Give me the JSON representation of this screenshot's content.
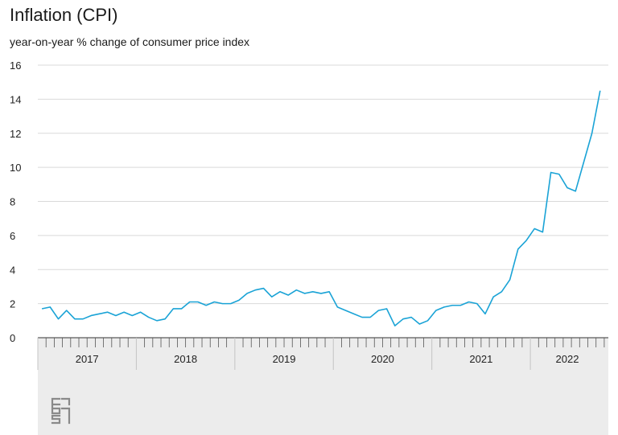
{
  "chart_data": {
    "type": "line",
    "title": "Inflation (CPI)",
    "subtitle": "year-on-year % change of consumer price index",
    "ylim": [
      0,
      16
    ],
    "yticks": [
      0,
      2,
      4,
      6,
      8,
      10,
      12,
      14,
      16
    ],
    "grid": true,
    "x_start": "2017-01",
    "x_end": "2022-09",
    "year_labels": [
      "2017",
      "2018",
      "2019",
      "2020",
      "2021",
      "2022"
    ],
    "series": [
      {
        "color": "#1aa3d6",
        "x": [
          "2017-01",
          "2017-02",
          "2017-03",
          "2017-04",
          "2017-05",
          "2017-06",
          "2017-07",
          "2017-08",
          "2017-09",
          "2017-10",
          "2017-11",
          "2017-12",
          "2018-01",
          "2018-02",
          "2018-03",
          "2018-04",
          "2018-05",
          "2018-06",
          "2018-07",
          "2018-08",
          "2018-09",
          "2018-10",
          "2018-11",
          "2018-12",
          "2019-01",
          "2019-02",
          "2019-03",
          "2019-04",
          "2019-05",
          "2019-06",
          "2019-07",
          "2019-08",
          "2019-09",
          "2019-10",
          "2019-11",
          "2019-12",
          "2020-01",
          "2020-02",
          "2020-03",
          "2020-04",
          "2020-05",
          "2020-06",
          "2020-07",
          "2020-08",
          "2020-09",
          "2020-10",
          "2020-11",
          "2020-12",
          "2021-01",
          "2021-02",
          "2021-03",
          "2021-04",
          "2021-05",
          "2021-06",
          "2021-07",
          "2021-08",
          "2021-09",
          "2021-10",
          "2021-11",
          "2021-12",
          "2022-01",
          "2022-02",
          "2022-03",
          "2022-04",
          "2022-05",
          "2022-06",
          "2022-07",
          "2022-08",
          "2022-09"
        ],
        "values": [
          1.7,
          1.8,
          1.1,
          1.6,
          1.1,
          1.1,
          1.3,
          1.4,
          1.5,
          1.3,
          1.5,
          1.3,
          1.5,
          1.2,
          1.0,
          1.1,
          1.7,
          1.7,
          2.1,
          2.1,
          1.9,
          2.1,
          2.0,
          2.0,
          2.2,
          2.6,
          2.8,
          2.9,
          2.4,
          2.7,
          2.5,
          2.8,
          2.6,
          2.7,
          2.6,
          2.7,
          1.8,
          1.6,
          1.4,
          1.2,
          1.2,
          1.6,
          1.7,
          0.7,
          1.1,
          1.2,
          0.8,
          1.0,
          1.6,
          1.8,
          1.9,
          1.9,
          2.1,
          2.0,
          1.4,
          2.4,
          2.7,
          3.4,
          5.2,
          5.7,
          6.4,
          6.2,
          9.7,
          9.6,
          8.8,
          8.6,
          10.3,
          12.0,
          14.5
        ]
      }
    ]
  },
  "colors": {
    "line": "#1aa3d6",
    "grid": "#d9d9d9",
    "axis_band": "#ececec",
    "logo": "#8a8a8a"
  },
  "logo": {
    "name": "cbs-logo",
    "text": "cbs"
  }
}
